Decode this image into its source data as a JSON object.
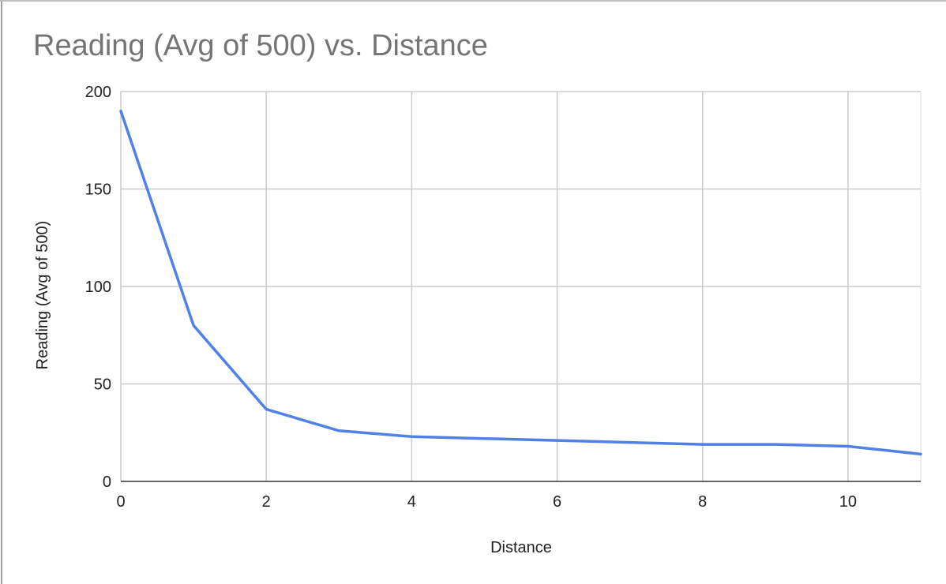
{
  "chart_data": {
    "type": "line",
    "title": "Reading (Avg of 500) vs. Distance",
    "xlabel": "Distance",
    "ylabel": "Reading (Avg of 500)",
    "xlim": [
      0,
      11
    ],
    "ylim": [
      0,
      200
    ],
    "x_ticks": [
      0,
      2,
      4,
      6,
      8,
      10
    ],
    "y_ticks": [
      0,
      50,
      100,
      150,
      200
    ],
    "grid": true,
    "series": [
      {
        "name": "Reading (Avg of 500)",
        "color": "#4f81e6",
        "x": [
          0,
          1,
          2,
          3,
          4,
          5,
          6,
          7,
          8,
          9,
          10,
          11
        ],
        "y": [
          190,
          80,
          37,
          26,
          23,
          22,
          21,
          20,
          19,
          19,
          18,
          14
        ]
      }
    ]
  }
}
